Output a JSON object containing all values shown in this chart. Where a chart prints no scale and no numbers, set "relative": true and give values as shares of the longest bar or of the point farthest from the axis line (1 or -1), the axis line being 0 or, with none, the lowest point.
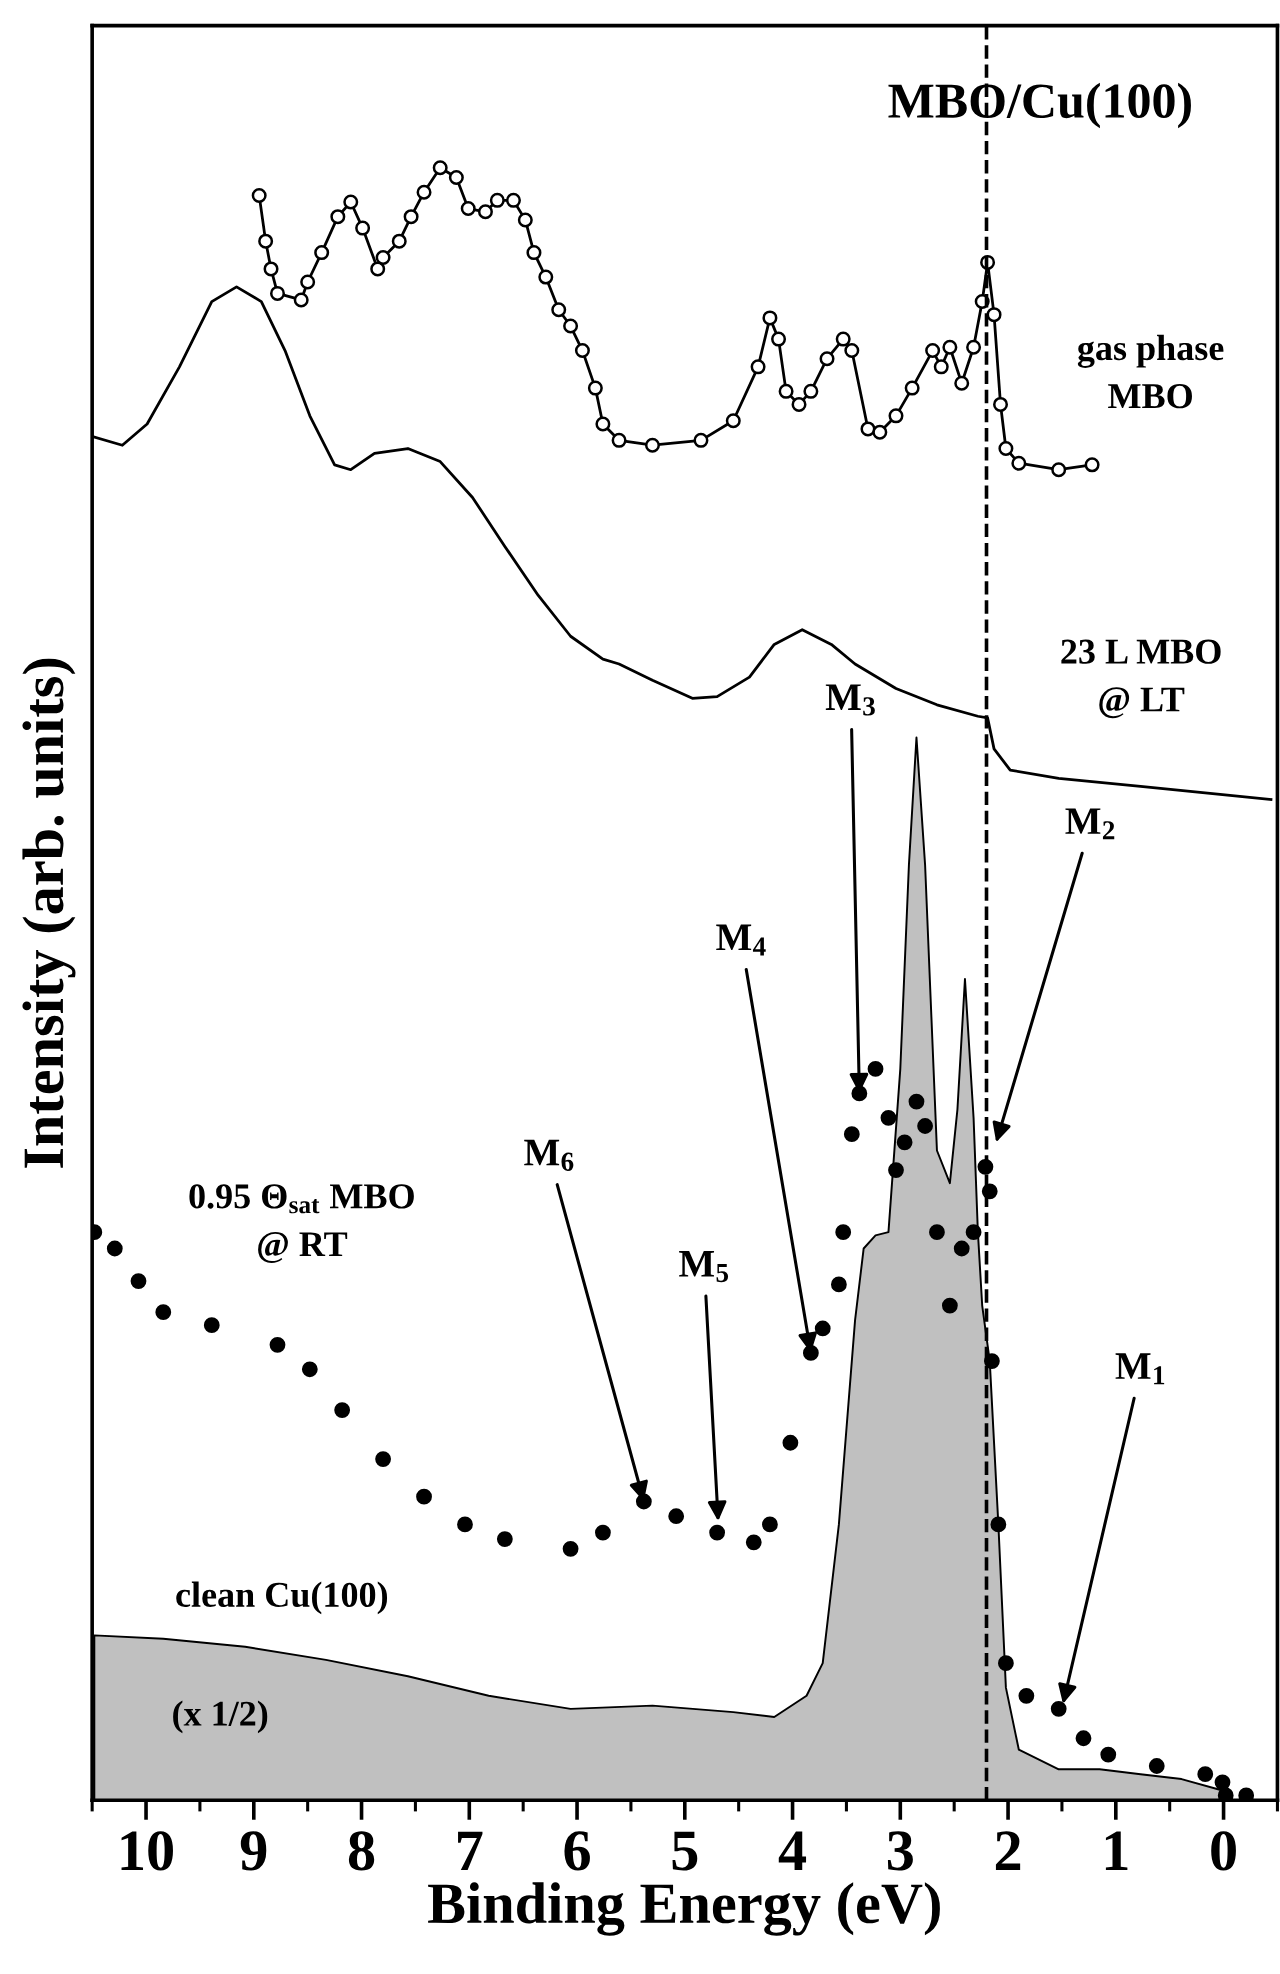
{
  "chart_data": {
    "type": "line",
    "relative": true,
    "title": "MBO/Cu(100)",
    "xlabel": "Binding Energy (eV)",
    "ylabel": "Intensity (arb. units)",
    "xlim": [
      10.5,
      -0.5
    ],
    "xticks": [
      10,
      9,
      8,
      7,
      6,
      5,
      4,
      3,
      2,
      1,
      0,
      {
        "value": 10.5,
        "label": null
      },
      {
        "value": 9.5,
        "label": null
      },
      {
        "value": 8.5,
        "label": null
      },
      {
        "value": 7.5,
        "label": null
      },
      {
        "value": 6.5,
        "label": null
      },
      {
        "value": 5.5,
        "label": null
      },
      {
        "value": 4.5,
        "label": null
      },
      {
        "value": 3.5,
        "label": null
      },
      {
        "value": 2.5,
        "label": null
      },
      {
        "value": 1.5,
        "label": null
      },
      {
        "value": 0.5,
        "label": null
      },
      {
        "value": -0.5,
        "label": null
      }
    ],
    "tick_labels": "x",
    "grid": false,
    "legend": false,
    "series": [
      {
        "name": "gas phase\nMBO",
        "marker": "circle",
        "color": "#000000",
        "x": [
          8.95,
          8.89,
          8.84,
          8.78,
          8.56,
          8.5,
          8.37,
          8.22,
          8.1,
          7.99,
          7.85,
          7.8,
          7.65,
          7.54,
          7.42,
          7.27,
          7.12,
          7.01,
          6.85,
          6.74,
          6.59,
          6.48,
          6.4,
          6.29,
          6.17,
          6.06,
          5.95,
          5.83,
          5.76,
          5.61,
          5.3,
          4.85,
          4.55,
          4.32,
          4.21,
          4.13,
          4.06,
          3.94,
          3.83,
          3.68,
          3.53,
          3.45,
          3.3,
          3.19,
          3.04,
          2.89,
          2.7,
          2.62,
          2.54,
          2.43,
          2.32,
          2.24,
          2.19,
          2.13,
          2.07,
          2.02,
          1.9,
          1.53,
          1.22
        ],
        "values": [
          0.983,
          0.955,
          0.938,
          0.923,
          0.919,
          0.93,
          0.948,
          0.97,
          0.979,
          0.963,
          0.938,
          0.945,
          0.955,
          0.97,
          0.985,
          1.0,
          0.994,
          0.975,
          0.973,
          0.98,
          0.98,
          0.968,
          0.948,
          0.933,
          0.913,
          0.903,
          0.888,
          0.865,
          0.843,
          0.833,
          0.83,
          0.833,
          0.845,
          0.878,
          0.908,
          0.895,
          0.863,
          0.855,
          0.863,
          0.883,
          0.895,
          0.888,
          0.84,
          0.838,
          0.848,
          0.865,
          0.888,
          0.878,
          0.89,
          0.868,
          0.89,
          0.918,
          0.942,
          0.91,
          0.855,
          0.828,
          0.819,
          0.815,
          0.818
        ]
      },
      {
        "name": "23 L MBO\n@ LT",
        "type": "line",
        "color": "#000000",
        "x": [
          10.48,
          10.22,
          9.99,
          9.69,
          9.39,
          9.16,
          8.93,
          8.71,
          8.48,
          8.25,
          8.1,
          7.88,
          7.57,
          7.27,
          6.97,
          6.67,
          6.36,
          6.06,
          5.76,
          5.61,
          5.3,
          4.93,
          4.7,
          4.4,
          4.17,
          3.91,
          3.64,
          3.42,
          3.04,
          2.66,
          2.28,
          2.19,
          2.13,
          1.98,
          1.53,
          0.77,
          0.01,
          -0.44
        ],
        "values": [
          0.835,
          0.83,
          0.843,
          0.878,
          0.918,
          0.927,
          0.918,
          0.888,
          0.848,
          0.818,
          0.815,
          0.825,
          0.828,
          0.82,
          0.798,
          0.768,
          0.738,
          0.713,
          0.699,
          0.696,
          0.686,
          0.675,
          0.676,
          0.688,
          0.708,
          0.717,
          0.708,
          0.696,
          0.681,
          0.671,
          0.664,
          0.663,
          0.644,
          0.631,
          0.626,
          0.621,
          0.616,
          0.613
        ]
      },
      {
        "name": "0.95 Θ$_{sat}$ MBO\n@ RT",
        "type": "scatter",
        "marker": "circle",
        "color": "#000000",
        "x": [
          10.48,
          10.29,
          10.07,
          9.84,
          9.39,
          8.78,
          8.48,
          8.18,
          7.8,
          7.42,
          7.04,
          6.67,
          6.06,
          5.76,
          5.38,
          5.08,
          4.7,
          4.36,
          4.21,
          4.02,
          3.83,
          3.72,
          3.57,
          3.53,
          3.45,
          3.38,
          3.23,
          3.11,
          3.04,
          2.96,
          2.85,
          2.77,
          2.66,
          2.54,
          2.43,
          2.32,
          2.21,
          2.17,
          2.15,
          2.09,
          2.02,
          1.83,
          1.53,
          1.3,
          1.07,
          0.62,
          0.17,
          0.01,
          -0.02,
          -0.21
        ],
        "values": [
          0.348,
          0.338,
          0.318,
          0.299,
          0.291,
          0.279,
          0.264,
          0.239,
          0.209,
          0.186,
          0.169,
          0.16,
          0.154,
          0.164,
          0.183,
          0.174,
          0.164,
          0.158,
          0.169,
          0.219,
          0.274,
          0.289,
          0.316,
          0.348,
          0.408,
          0.433,
          0.448,
          0.418,
          0.386,
          0.403,
          0.428,
          0.413,
          0.348,
          0.303,
          0.338,
          0.348,
          0.388,
          0.373,
          0.269,
          0.169,
          0.084,
          0.064,
          0.056,
          0.038,
          0.028,
          0.021,
          0.016,
          0.011,
          0.003,
          0.003
        ]
      },
      {
        "name": "clean Cu(100)",
        "type": "area",
        "color": "#c0c0c0",
        "x": [
          10.48,
          9.84,
          9.08,
          8.33,
          7.57,
          6.82,
          6.06,
          5.3,
          4.55,
          4.17,
          3.87,
          3.72,
          3.57,
          3.42,
          3.34,
          3.23,
          3.11,
          3.0,
          2.92,
          2.85,
          2.77,
          2.66,
          2.54,
          2.47,
          2.4,
          2.32,
          2.28,
          2.24,
          2.17,
          2.09,
          2.02,
          1.9,
          1.53,
          1.15,
          0.77,
          0.39,
          0.01,
          -0.02
        ],
        "values": [
          0.101,
          0.099,
          0.094,
          0.086,
          0.076,
          0.064,
          0.056,
          0.058,
          0.054,
          0.051,
          0.064,
          0.084,
          0.169,
          0.294,
          0.338,
          0.346,
          0.348,
          0.448,
          0.573,
          0.651,
          0.573,
          0.398,
          0.378,
          0.423,
          0.503,
          0.418,
          0.348,
          0.303,
          0.269,
          0.169,
          0.069,
          0.031,
          0.019,
          0.019,
          0.016,
          0.013,
          0.006,
          0.0
        ]
      }
    ],
    "ref_lines": [
      {
        "axis": "x",
        "value": 2.2,
        "line_style": "dashed",
        "color": "#000000"
      }
    ],
    "annotations": [
      {
        "text": "M$_{3}$",
        "x": 3.38,
        "y": 0.433
      },
      {
        "text": "M$_{2}$",
        "x": 2.11,
        "y": 0.403
      },
      {
        "text": "M$_{4}$",
        "x": 3.83,
        "y": 0.274
      },
      {
        "text": "M$_{6}$",
        "x": 5.38,
        "y": 0.183
      },
      {
        "text": "M$_{5}$",
        "x": 4.69,
        "y": 0.171
      },
      {
        "text": "M$_{1}$",
        "x": 1.49,
        "y": 0.059
      },
      "(x 1/2)"
    ]
  }
}
